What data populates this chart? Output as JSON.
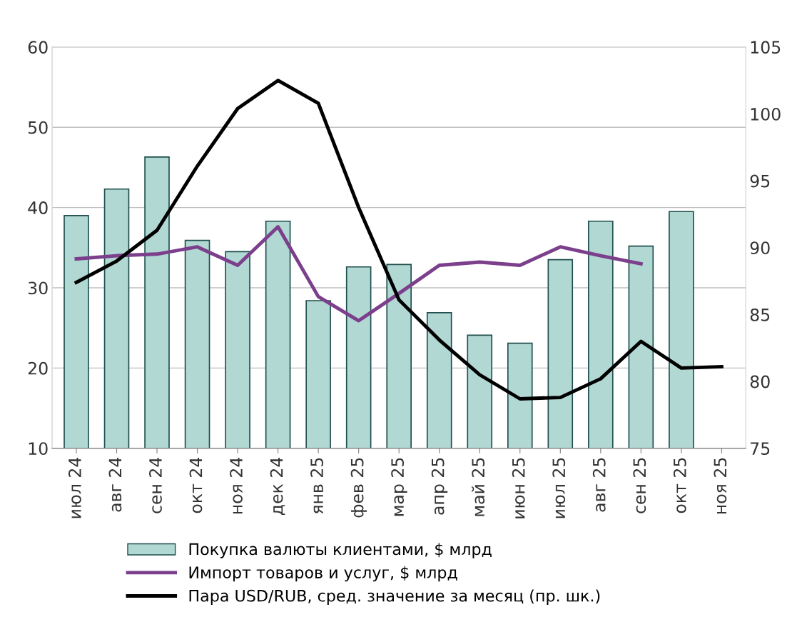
{
  "chart_data": {
    "type": "bar",
    "categories": [
      "июл 24",
      "авг 24",
      "сен 24",
      "окт 24",
      "ноя 24",
      "дек 24",
      "янв 25",
      "фев 25",
      "мар 25",
      "апр 25",
      "май 25",
      "июн 25",
      "июл 25",
      "авг 25",
      "сен 25",
      "окт 25",
      "ноя 25"
    ],
    "series": [
      {
        "name": "Покупка валюты клиентами, $ млрд",
        "color": "#b2d8d3",
        "values": [
          39.0,
          42.3,
          46.3,
          35.9,
          34.5,
          38.3,
          28.4,
          32.6,
          32.9,
          26.9,
          24.1,
          23.1,
          33.5,
          38.3,
          35.2,
          39.5,
          null
        ]
      },
      {
        "name": "Импорт товаров и услуг, $ млрд",
        "type": "line",
        "color": "#7b3f8c",
        "values": [
          33.6,
          34.0,
          34.2,
          35.1,
          32.8,
          37.6,
          28.9,
          25.9,
          29.3,
          32.8,
          33.2,
          32.8,
          35.1,
          34.0,
          33.0,
          null,
          null
        ]
      },
      {
        "name": "Пара USD/RUB, сред. значение за месяц (пр. шк.)",
        "type": "line",
        "axis": "y2",
        "color": "#000000",
        "values": [
          87.4,
          89.0,
          91.3,
          96.1,
          100.4,
          102.5,
          100.8,
          93.0,
          86.1,
          83.1,
          80.5,
          78.7,
          78.8,
          80.2,
          83.0,
          81.0,
          81.1
        ]
      }
    ],
    "ylim": [
      10,
      60
    ],
    "yticks": [
      10,
      20,
      30,
      40,
      50,
      60
    ],
    "y2lim": [
      75,
      105
    ],
    "y2ticks": [
      75,
      80,
      85,
      90,
      95,
      100,
      105
    ],
    "grid": "y",
    "legend": "bottom",
    "marker": "none",
    "line_style": "solid"
  }
}
